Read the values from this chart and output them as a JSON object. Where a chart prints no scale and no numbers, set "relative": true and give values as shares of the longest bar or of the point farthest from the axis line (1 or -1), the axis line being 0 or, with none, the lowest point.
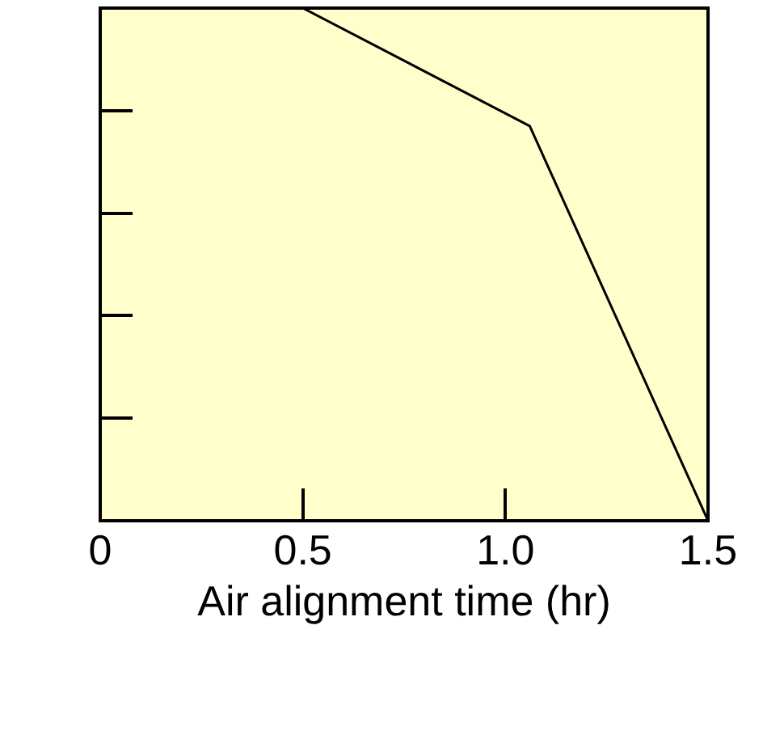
{
  "chart_data": {
    "type": "line",
    "relative": true,
    "xlabel": "Air alignment time (hr)",
    "x": [
      0,
      0.5,
      1.06,
      1.5
    ],
    "series": [
      {
        "color": "#000000",
        "values": [
          1,
          1,
          0.77,
          0
        ]
      }
    ],
    "xlim": [
      0,
      1.5
    ],
    "xticks": [
      0,
      0.5,
      {
        "value": 1.0,
        "label": "1.0"
      },
      1.5
    ],
    "marker": "none",
    "line_style": "solid"
  }
}
